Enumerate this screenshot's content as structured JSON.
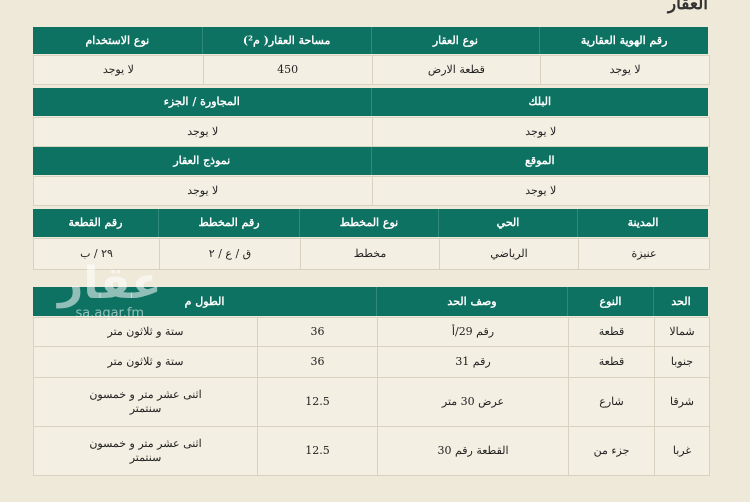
{
  "title": "العقار",
  "property": {
    "headers": [
      "رقم الهوية العقارية",
      "نوع العقار",
      "مساحة العقار( م²)",
      "نوع الاستخدام"
    ],
    "values": [
      "لا يوجد",
      "قطعة الارض",
      "450",
      "لا يوجد"
    ]
  },
  "block": {
    "headers": [
      "البلك",
      "المجاورة / الجزء"
    ],
    "values": [
      "لا يوجد",
      "لا يوجد"
    ]
  },
  "location": {
    "headers": [
      "الموقع",
      "نموذج العقار"
    ],
    "values": [
      "لا يوجد",
      "لا يوجد"
    ]
  },
  "plan": {
    "headers": [
      "المدينة",
      "الحي",
      "نوع المخطط",
      "رقم المخطط",
      "رقم القطعة"
    ],
    "values": [
      "عنيزة",
      "الرياضي",
      "مخطط",
      "ق / ع / ٢",
      "٢٩ / ب"
    ]
  },
  "boundaries": {
    "headers": [
      "الحد",
      "النوع",
      "وصف الحد",
      "الطول م"
    ],
    "rows": [
      [
        "شمالا",
        "قطعة",
        "رقم 29/أ",
        "36",
        "ستة و ثلاثون متر"
      ],
      [
        "جنوبا",
        "قطعة",
        "رقم 31",
        "36",
        "ستة و ثلاثون متر"
      ],
      [
        "شرقا",
        "شارع",
        "عرض 30 متر",
        "12.5",
        "اثنى عشر متر و خمسون سنتمتر"
      ],
      [
        "غربا",
        "جزء من",
        "القطعة رقم 30",
        "12.5",
        "اثنى عشر متر و خمسون سنتمتر"
      ]
    ]
  },
  "watermark": {
    "logo": "عقار",
    "url": "sa.aqar.fm"
  },
  "colors": {
    "header_green": "#0d7262",
    "background": "#eee9d9"
  }
}
